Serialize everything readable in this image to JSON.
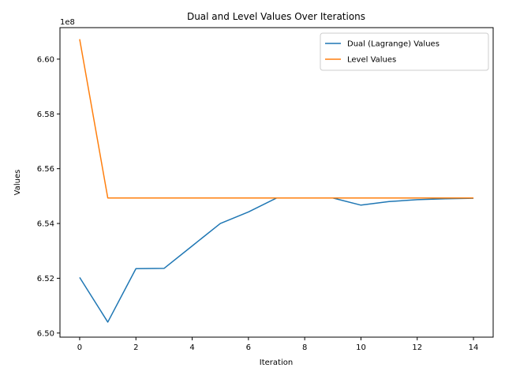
{
  "chart_data": {
    "type": "line",
    "title": "Dual and Level Values Over Iterations",
    "xlabel": "Iteration",
    "ylabel": "Values",
    "offset_label": "1e8",
    "y_scale_factor": 100000000,
    "xlim": [
      -0.7,
      14.7
    ],
    "ylim": [
      6.4985,
      6.6115
    ],
    "xticks": [
      0,
      2,
      4,
      6,
      8,
      10,
      12,
      14
    ],
    "yticks": [
      6.5,
      6.52,
      6.54,
      6.56,
      6.58,
      6.6
    ],
    "ytick_labels": [
      "6.50",
      "6.52",
      "6.54",
      "6.56",
      "6.58",
      "6.60"
    ],
    "legend_position": "upper right",
    "grid": false,
    "x": [
      0,
      1,
      2,
      3,
      4,
      5,
      6,
      7,
      8,
      9,
      10,
      11,
      12,
      13,
      14
    ],
    "series": [
      {
        "name": "Dual (Lagrange) Values",
        "color": "#1f77b4",
        "values": [
          6.5203,
          6.504,
          6.5235,
          6.5236,
          6.5318,
          6.54,
          6.5442,
          6.5493,
          6.5493,
          6.5493,
          6.5467,
          6.548,
          6.5487,
          6.549,
          6.5492
        ]
      },
      {
        "name": "Level Values",
        "color": "#ff7f0e",
        "values": [
          6.6073,
          6.5493,
          6.5493,
          6.5493,
          6.5493,
          6.5493,
          6.5493,
          6.5493,
          6.5493,
          6.5493,
          6.5493,
          6.5493,
          6.5493,
          6.5493,
          6.5493
        ]
      }
    ]
  }
}
